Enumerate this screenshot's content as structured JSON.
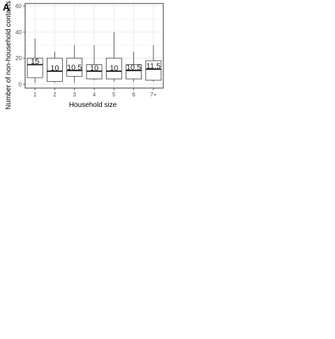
{
  "chart_data": {
    "type": "boxplot",
    "panel_tag": "A",
    "xlabel": "Household size",
    "ylabel": "Number of non-household contacts",
    "categories": [
      "1",
      "2",
      "3",
      "4",
      "5",
      "6",
      "7+"
    ],
    "ylim": [
      -3,
      62
    ],
    "yticks": [
      0,
      20,
      40,
      60
    ],
    "grid": true,
    "boxes": [
      {
        "category": "1",
        "min": 1,
        "q1": 5,
        "median": 15,
        "q3": 20,
        "max": 35,
        "label": "15"
      },
      {
        "category": "2",
        "min": 1,
        "q1": 2,
        "median": 10,
        "q3": 20,
        "max": 25,
        "label": "10"
      },
      {
        "category": "3",
        "min": 1,
        "q1": 6,
        "median": 10.5,
        "q3": 20,
        "max": 30,
        "label": "10.5"
      },
      {
        "category": "4",
        "min": 3,
        "q1": 4,
        "median": 10,
        "q3": 15,
        "max": 30,
        "label": "10"
      },
      {
        "category": "5",
        "min": 2,
        "q1": 4,
        "median": 10,
        "q3": 20,
        "max": 40,
        "label": "10"
      },
      {
        "category": "6",
        "min": 2,
        "q1": 4,
        "median": 10.5,
        "q3": 15,
        "max": 25,
        "label": "10.5"
      },
      {
        "category": "7+",
        "min": 2,
        "q1": 3,
        "median": 11.5,
        "q3": 18,
        "max": 30,
        "label": "11.5"
      }
    ]
  },
  "colors": {
    "background": "#ffffff",
    "grid": "#ebebeb",
    "box_stroke": "#333333",
    "median": "#1a1a1a",
    "text": "#4d4d4d"
  }
}
